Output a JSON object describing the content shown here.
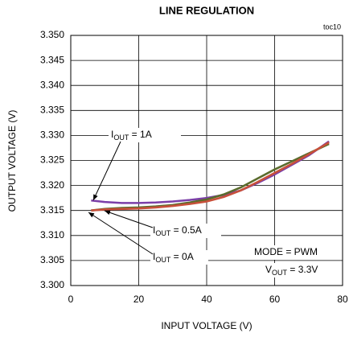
{
  "chart_data": {
    "type": "line",
    "title": "LINE REGULATION",
    "figure_id": "toc10",
    "x_label": "INPUT VOLTAGE (V)",
    "y_label": "OUTPUT VOLTAGE (V)",
    "xlim": [
      0,
      80
    ],
    "xticks": [
      0,
      20,
      40,
      60,
      80
    ],
    "ylim": [
      3.3,
      3.35
    ],
    "yticks": [
      {
        "value": 3.3,
        "label": "3.300"
      },
      3.305,
      {
        "value": 3.31,
        "label": "3.310"
      },
      3.315,
      {
        "value": 3.32,
        "label": "3.320"
      },
      3.325,
      {
        "value": 3.33,
        "label": "3.330"
      },
      3.335,
      {
        "value": 3.34,
        "label": "3.340"
      },
      3.345,
      {
        "value": 3.35,
        "label": "3.350"
      }
    ],
    "grid": true,
    "x": [
      6,
      10,
      15,
      20,
      25,
      30,
      35,
      40,
      45,
      50,
      55,
      60,
      65,
      70,
      76
    ],
    "series": [
      {
        "name": "1A",
        "color": "#7b3fa8",
        "values": [
          3.317,
          3.3167,
          3.3165,
          3.3165,
          3.3166,
          3.3168,
          3.3171,
          3.3175,
          3.3181,
          3.319,
          3.3205,
          3.3222,
          3.3241,
          3.326,
          3.3288
        ]
      },
      {
        "name": "0.5A",
        "color": "#5a6b2c",
        "values": [
          3.315,
          3.3153,
          3.3155,
          3.3156,
          3.3158,
          3.3161,
          3.3166,
          3.3172,
          3.3182,
          3.3196,
          3.3214,
          3.3232,
          3.3248,
          3.3264,
          3.3283
        ]
      },
      {
        "name": "0A",
        "color": "#c8503a",
        "values": [
          3.315,
          3.3152,
          3.3153,
          3.3154,
          3.3156,
          3.3159,
          3.3163,
          3.3168,
          3.3177,
          3.319,
          3.3207,
          3.3225,
          3.3243,
          3.3262,
          3.3286
        ]
      }
    ],
    "annotations": [
      {
        "main": "I",
        "sub": "OUT",
        "rest": " = 1A"
      },
      {
        "main": "I",
        "sub": "OUT",
        "rest": " = 0.5A"
      },
      {
        "main": "I",
        "sub": "OUT",
        "rest": " = 0A"
      },
      {
        "main": "MODE = PWM"
      },
      {
        "main": "V",
        "sub": "OUT",
        "rest": " = 3.3V"
      }
    ]
  }
}
